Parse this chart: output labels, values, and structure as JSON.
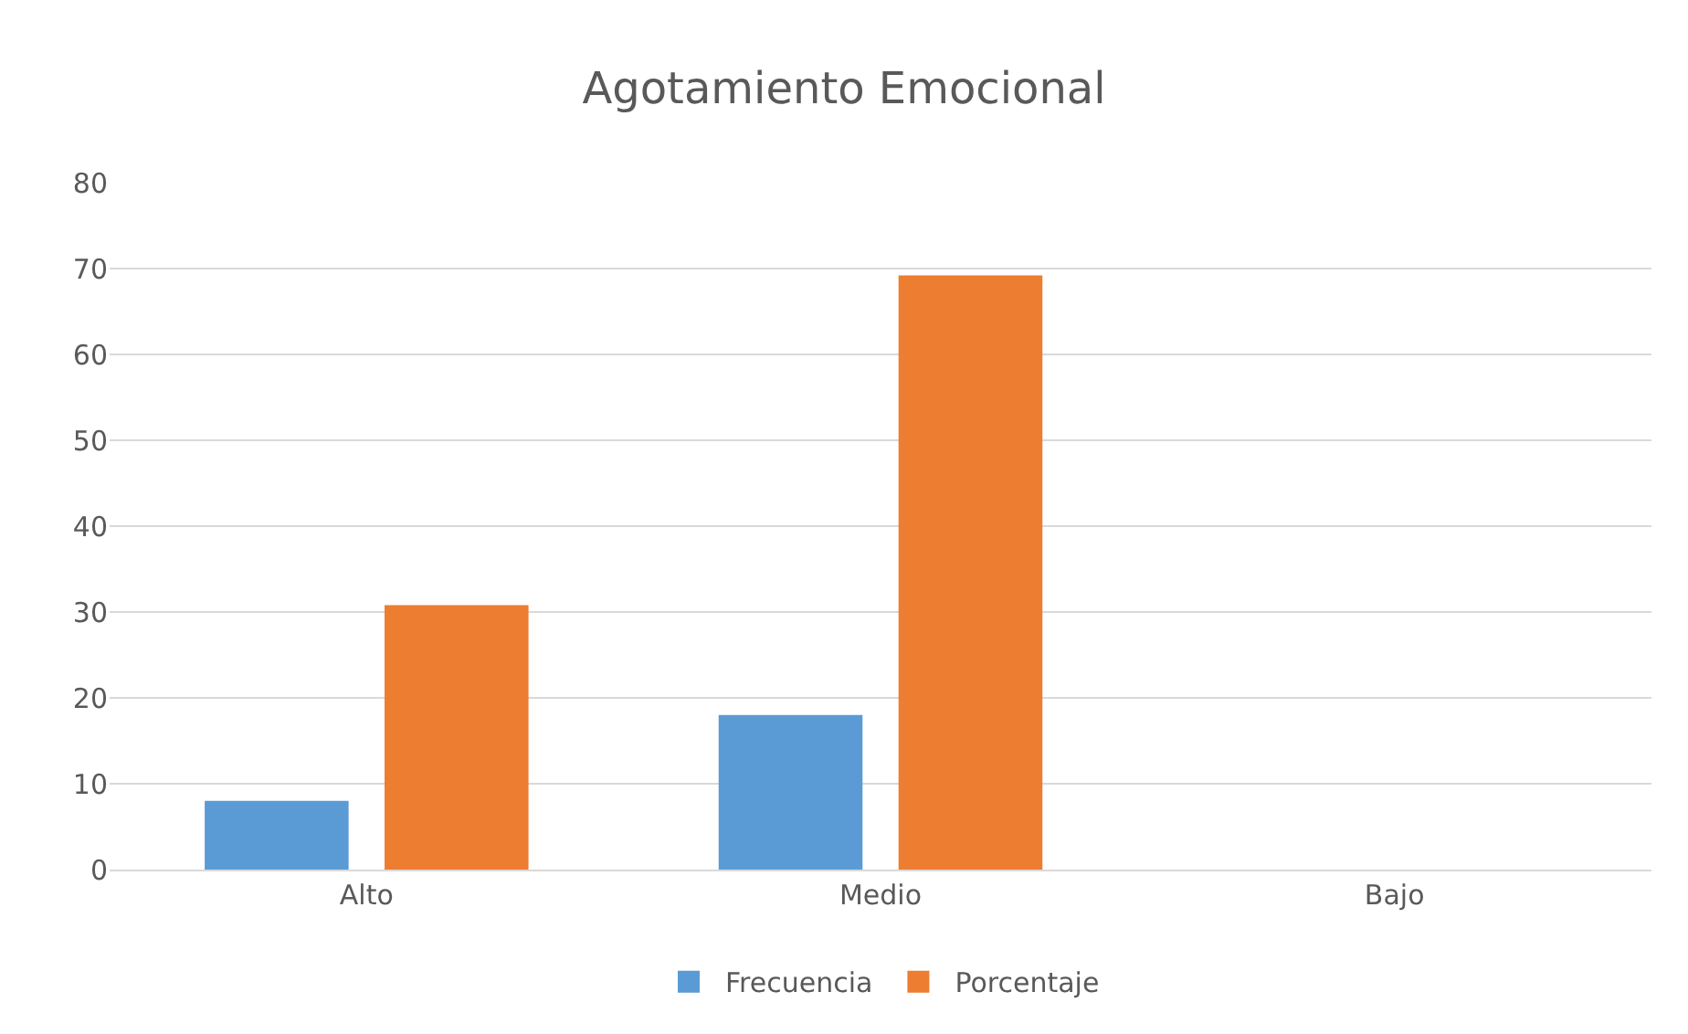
{
  "chart_data": {
    "type": "bar",
    "title": "Agotamiento Emocional",
    "categories": [
      "Alto",
      "Medio",
      "Bajo"
    ],
    "series": [
      {
        "name": "Frecuencia",
        "color": "#5b9bd5",
        "values": [
          8,
          18,
          0
        ]
      },
      {
        "name": "Porcentaje",
        "color": "#ed7d31",
        "values": [
          30.8,
          69.2,
          0
        ]
      }
    ],
    "ylim": [
      0,
      80
    ],
    "yticks": [
      0,
      10,
      20,
      30,
      40,
      50,
      60,
      70,
      80
    ],
    "grid": "y",
    "legend": "bottom"
  }
}
